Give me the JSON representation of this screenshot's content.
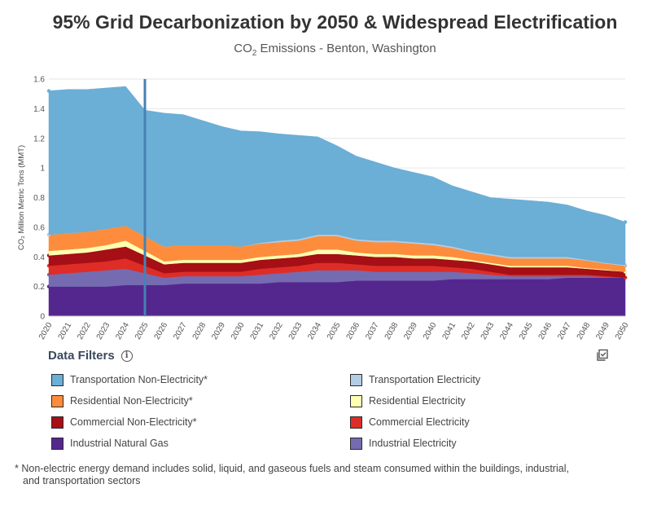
{
  "header": {
    "title": "95% Grid Decarbonization by 2050 & Widespread Electrification",
    "subtitle_prefix": "CO",
    "subtitle_sub": "2",
    "subtitle_suffix": " Emissions - Benton, Washington"
  },
  "filters": {
    "title": "Data Filters",
    "info_glyph": "i"
  },
  "footnote": {
    "line1": "* Non-electric energy demand includes solid, liquid, and gaseous fuels and steam consumed within the buildings, industrial,",
    "line2": "and transportation sectors"
  },
  "chart_data": {
    "type": "area",
    "stacked": true,
    "x": [
      2020,
      2021,
      2022,
      2023,
      2024,
      2025,
      2026,
      2027,
      2028,
      2029,
      2030,
      2031,
      2032,
      2033,
      2034,
      2035,
      2036,
      2037,
      2038,
      2039,
      2040,
      2041,
      2042,
      2043,
      2044,
      2045,
      2046,
      2047,
      2048,
      2049,
      2050
    ],
    "ylabel": "CO₂ Million Metric Tons (MMT)",
    "ylim": [
      0,
      1.6
    ],
    "yticks": [
      0,
      0.2,
      0.4,
      0.6,
      0.8,
      1,
      1.2,
      1.4,
      1.6
    ],
    "grid": true,
    "marker_year": 2025,
    "series": [
      {
        "name": "Industrial Natural Gas",
        "color": "#54278f",
        "values": [
          0.2,
          0.2,
          0.2,
          0.2,
          0.21,
          0.21,
          0.21,
          0.22,
          0.22,
          0.22,
          0.22,
          0.22,
          0.23,
          0.23,
          0.23,
          0.23,
          0.24,
          0.24,
          0.24,
          0.24,
          0.24,
          0.25,
          0.25,
          0.25,
          0.25,
          0.25,
          0.25,
          0.26,
          0.26,
          0.26,
          0.26
        ]
      },
      {
        "name": "Industrial Electricity",
        "color": "#756bb1",
        "values": [
          0.08,
          0.09,
          0.1,
          0.11,
          0.11,
          0.08,
          0.05,
          0.05,
          0.05,
          0.05,
          0.05,
          0.06,
          0.06,
          0.07,
          0.08,
          0.08,
          0.07,
          0.06,
          0.06,
          0.06,
          0.06,
          0.05,
          0.04,
          0.03,
          0.02,
          0.02,
          0.02,
          0.01,
          0.01,
          0.005,
          0.0
        ]
      },
      {
        "name": "Commercial Electricity",
        "color": "#de2d26",
        "values": [
          0.06,
          0.06,
          0.06,
          0.06,
          0.07,
          0.05,
          0.03,
          0.03,
          0.03,
          0.03,
          0.03,
          0.04,
          0.04,
          0.04,
          0.05,
          0.05,
          0.04,
          0.04,
          0.04,
          0.04,
          0.04,
          0.03,
          0.03,
          0.02,
          0.01,
          0.01,
          0.01,
          0.01,
          0.01,
          0.005,
          0.0
        ]
      },
      {
        "name": "Commercial Non-Electricity*",
        "color": "#a50f15",
        "values": [
          0.07,
          0.07,
          0.07,
          0.08,
          0.08,
          0.07,
          0.06,
          0.06,
          0.06,
          0.06,
          0.06,
          0.06,
          0.06,
          0.06,
          0.06,
          0.06,
          0.06,
          0.06,
          0.06,
          0.05,
          0.05,
          0.05,
          0.05,
          0.05,
          0.05,
          0.05,
          0.05,
          0.05,
          0.04,
          0.04,
          0.04
        ]
      },
      {
        "name": "Residential Electricity",
        "color": "#ffffb2",
        "values": [
          0.03,
          0.03,
          0.03,
          0.03,
          0.04,
          0.03,
          0.02,
          0.02,
          0.02,
          0.02,
          0.02,
          0.02,
          0.02,
          0.02,
          0.03,
          0.03,
          0.02,
          0.02,
          0.02,
          0.02,
          0.02,
          0.02,
          0.01,
          0.01,
          0.01,
          0.01,
          0.01,
          0.01,
          0.005,
          0.005,
          0.0
        ]
      },
      {
        "name": "Residential Non-Electricity*",
        "color": "#fd8d3c",
        "values": [
          0.11,
          0.11,
          0.11,
          0.11,
          0.1,
          0.1,
          0.1,
          0.1,
          0.1,
          0.1,
          0.09,
          0.09,
          0.09,
          0.09,
          0.09,
          0.09,
          0.08,
          0.08,
          0.08,
          0.08,
          0.07,
          0.06,
          0.05,
          0.05,
          0.05,
          0.05,
          0.05,
          0.05,
          0.05,
          0.04,
          0.04
        ]
      },
      {
        "name": "Transportation Electricity",
        "color": "#b3cde3",
        "values": [
          0.0,
          0.0,
          0.0,
          0.0,
          0.0,
          0.0,
          0.0,
          0.0,
          0.0,
          0.0,
          0.0,
          0.005,
          0.01,
          0.01,
          0.01,
          0.01,
          0.01,
          0.01,
          0.01,
          0.01,
          0.01,
          0.01,
          0.01,
          0.01,
          0.01,
          0.01,
          0.01,
          0.01,
          0.005,
          0.005,
          0.005
        ]
      },
      {
        "name": "Transportation Non-Electricity*",
        "color": "#6baed6",
        "values": [
          0.97,
          0.97,
          0.96,
          0.95,
          0.94,
          0.85,
          0.9,
          0.88,
          0.84,
          0.8,
          0.78,
          0.75,
          0.72,
          0.7,
          0.66,
          0.6,
          0.56,
          0.53,
          0.49,
          0.47,
          0.45,
          0.41,
          0.4,
          0.38,
          0.39,
          0.38,
          0.37,
          0.35,
          0.33,
          0.32,
          0.29
        ]
      }
    ]
  },
  "legend": {
    "items": [
      {
        "label": "Transportation Non-Electricity*",
        "color": "#6baed6"
      },
      {
        "label": "Transportation Electricity",
        "color": "#b3cde3"
      },
      {
        "label": "Residential Non-Electricity*",
        "color": "#fd8d3c"
      },
      {
        "label": "Residential Electricity",
        "color": "#ffffb2"
      },
      {
        "label": "Commercial Non-Electricity*",
        "color": "#a50f15"
      },
      {
        "label": "Commercial Electricity",
        "color": "#de2d26"
      },
      {
        "label": "Industrial Natural Gas",
        "color": "#54278f"
      },
      {
        "label": "Industrial Electricity",
        "color": "#756bb1"
      }
    ]
  }
}
